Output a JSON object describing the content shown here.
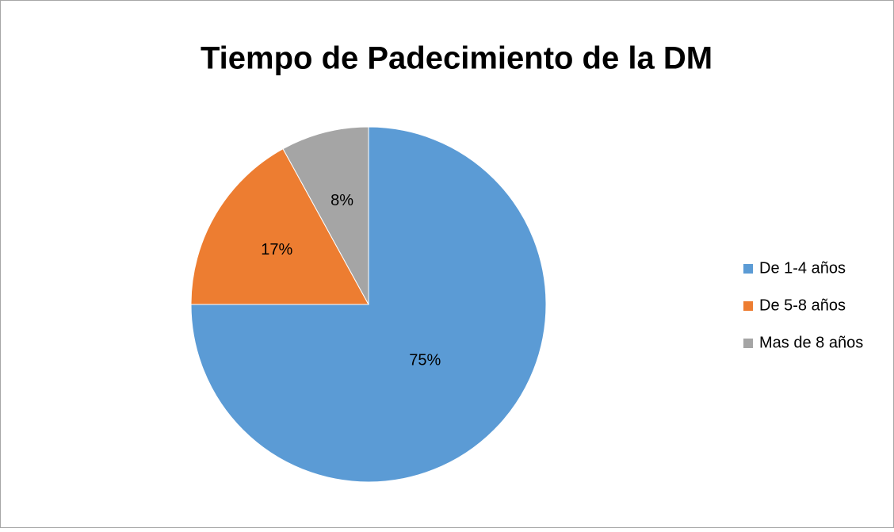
{
  "chart_data": {
    "type": "pie",
    "title": "Tiempo de Padecimiento de la DM",
    "categories": [
      "De 1-4 años",
      "De 5-8 años",
      "Mas de 8 años"
    ],
    "values": [
      75,
      17,
      8
    ],
    "value_labels": [
      "75%",
      "17%",
      "8%"
    ],
    "colors": [
      "#5b9bd5",
      "#ed7d31",
      "#a5a5a5"
    ],
    "legend": "right"
  }
}
